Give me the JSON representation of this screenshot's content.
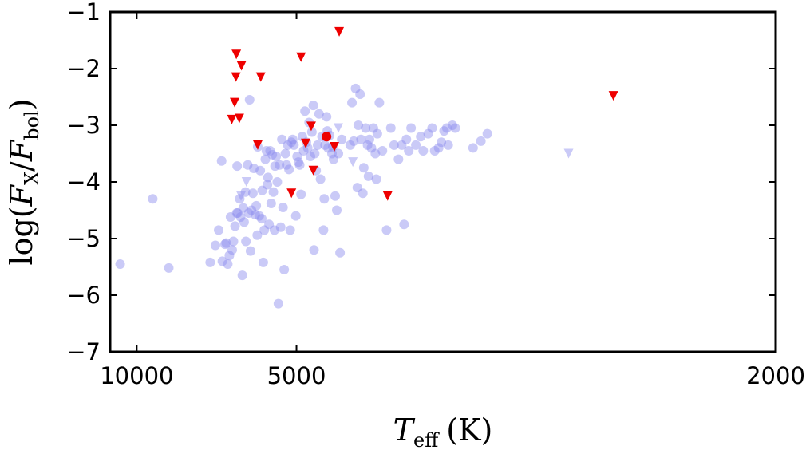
{
  "chart_data": {
    "type": "scatter",
    "x_scale": "reciprocal",
    "xlim": [
      12000,
      2000
    ],
    "ylim": [
      -7,
      -1
    ],
    "xlabel": {
      "main": "T",
      "sub": "eff",
      "unit": "(K)"
    },
    "ylabel": {
      "pre": "log(",
      "num": "F",
      "num_sub": "X",
      "slash": "/",
      "den": "F",
      "den_sub": "bol",
      "post": ")"
    },
    "x_ticks": [
      10000,
      5000,
      2000
    ],
    "y_ticks": [
      -1,
      -2,
      -3,
      -4,
      -5,
      -6,
      -7
    ],
    "colors": {
      "detections": "#8a8aee",
      "upper_limits_red": "#ee0000",
      "highlight": "#ee0000"
    },
    "series": [
      {
        "marker": "circle",
        "style": "faint-blue",
        "points": [
          [
            11160,
            -5.45
          ],
          [
            9090,
            -4.3
          ],
          [
            8330,
            -5.52
          ],
          [
            6850,
            -5.42
          ],
          [
            6700,
            -5.12
          ],
          [
            6610,
            -4.85
          ],
          [
            6530,
            -3.63
          ],
          [
            6510,
            -5.4
          ],
          [
            6440,
            -5.1
          ],
          [
            6410,
            -5.08
          ],
          [
            6370,
            -5.45
          ],
          [
            6330,
            -5.3
          ],
          [
            6300,
            -4.62
          ],
          [
            6260,
            -5.2
          ],
          [
            6230,
            -5.05
          ],
          [
            6190,
            -4.78
          ],
          [
            6150,
            -4.55
          ],
          [
            6130,
            -4.55
          ],
          [
            6140,
            -3.72
          ],
          [
            6080,
            -4.3
          ],
          [
            6060,
            -4.62
          ],
          [
            6020,
            -5.65
          ],
          [
            6000,
            -4.46
          ],
          [
            5980,
            -4.71
          ],
          [
            5950,
            -4.18
          ],
          [
            5940,
            -5.05
          ],
          [
            5900,
            -3.7
          ],
          [
            5880,
            -4.55
          ],
          [
            5860,
            -2.55
          ],
          [
            5840,
            -5.22
          ],
          [
            5820,
            -4.5
          ],
          [
            5790,
            -4.2
          ],
          [
            5770,
            -3.76
          ],
          [
            5740,
            -4.58
          ],
          [
            5720,
            -4.42
          ],
          [
            5700,
            -4.94
          ],
          [
            5690,
            -3.38
          ],
          [
            5660,
            -4.6
          ],
          [
            5640,
            -3.8
          ],
          [
            5610,
            -4.65
          ],
          [
            5600,
            -4.15
          ],
          [
            5580,
            -5.42
          ],
          [
            5560,
            -4.85
          ],
          [
            5540,
            -3.6
          ],
          [
            5520,
            -3.45
          ],
          [
            5500,
            -4.05
          ],
          [
            5490,
            -3.92
          ],
          [
            5470,
            -4.75
          ],
          [
            5450,
            -3.45
          ],
          [
            5430,
            -4.38
          ],
          [
            5410,
            -3.52
          ],
          [
            5390,
            -4.18
          ],
          [
            5370,
            -4.85
          ],
          [
            5360,
            -3.72
          ],
          [
            5340,
            -3.55
          ],
          [
            5320,
            -4.0
          ],
          [
            5300,
            -6.15
          ],
          [
            5280,
            -3.7
          ],
          [
            5260,
            -4.8
          ],
          [
            5240,
            -3.25
          ],
          [
            5220,
            -4.45
          ],
          [
            5200,
            -5.55
          ],
          [
            5180,
            -3.5
          ],
          [
            5160,
            -3.7
          ],
          [
            5140,
            -3.35
          ],
          [
            5120,
            -3.78
          ],
          [
            5100,
            -4.85
          ],
          [
            5080,
            -3.3
          ],
          [
            5060,
            -3.25
          ],
          [
            5040,
            -3.35
          ],
          [
            5010,
            -4.6
          ],
          [
            4990,
            -3.55
          ],
          [
            4970,
            -3.65
          ],
          [
            4950,
            -3.7
          ],
          [
            4930,
            -4.22
          ],
          [
            4910,
            -3.2
          ],
          [
            4890,
            -3.45
          ],
          [
            4870,
            -2.75
          ],
          [
            4850,
            -3.3
          ],
          [
            4830,
            -3.4
          ],
          [
            4810,
            -2.95
          ],
          [
            4790,
            -3.55
          ],
          [
            4770,
            -3.12
          ],
          [
            4750,
            -2.65
          ],
          [
            4740,
            -5.2
          ],
          [
            4730,
            -3.5
          ],
          [
            4710,
            -3.8
          ],
          [
            4690,
            -3.35
          ],
          [
            4670,
            -2.8
          ],
          [
            4650,
            -3.95
          ],
          [
            4630,
            -3.2
          ],
          [
            4610,
            -4.85
          ],
          [
            4600,
            -4.3
          ],
          [
            4590,
            -3.35
          ],
          [
            4570,
            -2.85
          ],
          [
            4560,
            -3.1
          ],
          [
            4550,
            -3.4
          ],
          [
            4530,
            -3.18
          ],
          [
            4500,
            -3.5
          ],
          [
            4490,
            -3.38
          ],
          [
            4480,
            -3.6
          ],
          [
            4460,
            -4.25
          ],
          [
            4440,
            -4.5
          ],
          [
            4420,
            -3.5
          ],
          [
            4400,
            -5.25
          ],
          [
            4380,
            -3.25
          ],
          [
            4280,
            -3.35
          ],
          [
            4260,
            -2.6
          ],
          [
            4240,
            -3.28
          ],
          [
            4220,
            -2.35
          ],
          [
            4200,
            -4.1
          ],
          [
            4190,
            -3.0
          ],
          [
            4170,
            -2.45
          ],
          [
            4160,
            -3.25
          ],
          [
            4140,
            -4.2
          ],
          [
            4130,
            -3.75
          ],
          [
            4110,
            -3.05
          ],
          [
            4090,
            -3.35
          ],
          [
            4080,
            -3.9
          ],
          [
            4070,
            -3.25
          ],
          [
            4050,
            -3.4
          ],
          [
            4030,
            -3.05
          ],
          [
            4010,
            -3.5
          ],
          [
            4000,
            -3.95
          ],
          [
            3990,
            -3.15
          ],
          [
            3970,
            -2.6
          ],
          [
            3940,
            -3.45
          ],
          [
            3900,
            -4.85
          ],
          [
            3860,
            -3.05
          ],
          [
            3830,
            -3.35
          ],
          [
            3790,
            -3.6
          ],
          [
            3760,
            -3.35
          ],
          [
            3740,
            -4.75
          ],
          [
            3720,
            -3.25
          ],
          [
            3700,
            -3.45
          ],
          [
            3680,
            -3.05
          ],
          [
            3640,
            -3.35
          ],
          [
            3600,
            -3.2
          ],
          [
            3580,
            -3.45
          ],
          [
            3540,
            -3.15
          ],
          [
            3510,
            -3.05
          ],
          [
            3490,
            -3.45
          ],
          [
            3460,
            -3.4
          ],
          [
            3440,
            -3.3
          ],
          [
            3420,
            -3.1
          ],
          [
            3400,
            -3.05
          ],
          [
            3390,
            -3.35
          ],
          [
            3360,
            -3.0
          ],
          [
            3340,
            -3.05
          ],
          [
            3220,
            -3.4
          ],
          [
            3170,
            -3.28
          ],
          [
            3130,
            -3.15
          ]
        ]
      },
      {
        "marker": "triangle-down",
        "style": "faint-blue",
        "points": [
          [
            6050,
            -4.25
          ],
          [
            5930,
            -4.0
          ],
          [
            4420,
            -3.05
          ],
          [
            4250,
            -3.65
          ],
          [
            2700,
            -3.5
          ]
        ]
      },
      {
        "marker": "triangle-down",
        "style": "red",
        "points": [
          [
            6270,
            -2.9
          ],
          [
            6200,
            -2.6
          ],
          [
            6170,
            -2.15
          ],
          [
            6160,
            -1.75
          ],
          [
            6090,
            -2.88
          ],
          [
            6040,
            -1.95
          ],
          [
            5690,
            -3.35
          ],
          [
            5630,
            -2.15
          ],
          [
            5080,
            -4.2
          ],
          [
            4930,
            -1.8
          ],
          [
            4860,
            -3.32
          ],
          [
            4780,
            -3.02
          ],
          [
            4750,
            -3.8
          ],
          [
            4470,
            -3.38
          ],
          [
            4410,
            -1.35
          ],
          [
            3890,
            -4.25
          ],
          [
            2510,
            -2.48
          ]
        ]
      },
      {
        "marker": "circle",
        "style": "red",
        "points": [
          [
            4570,
            -3.2
          ]
        ]
      }
    ]
  }
}
